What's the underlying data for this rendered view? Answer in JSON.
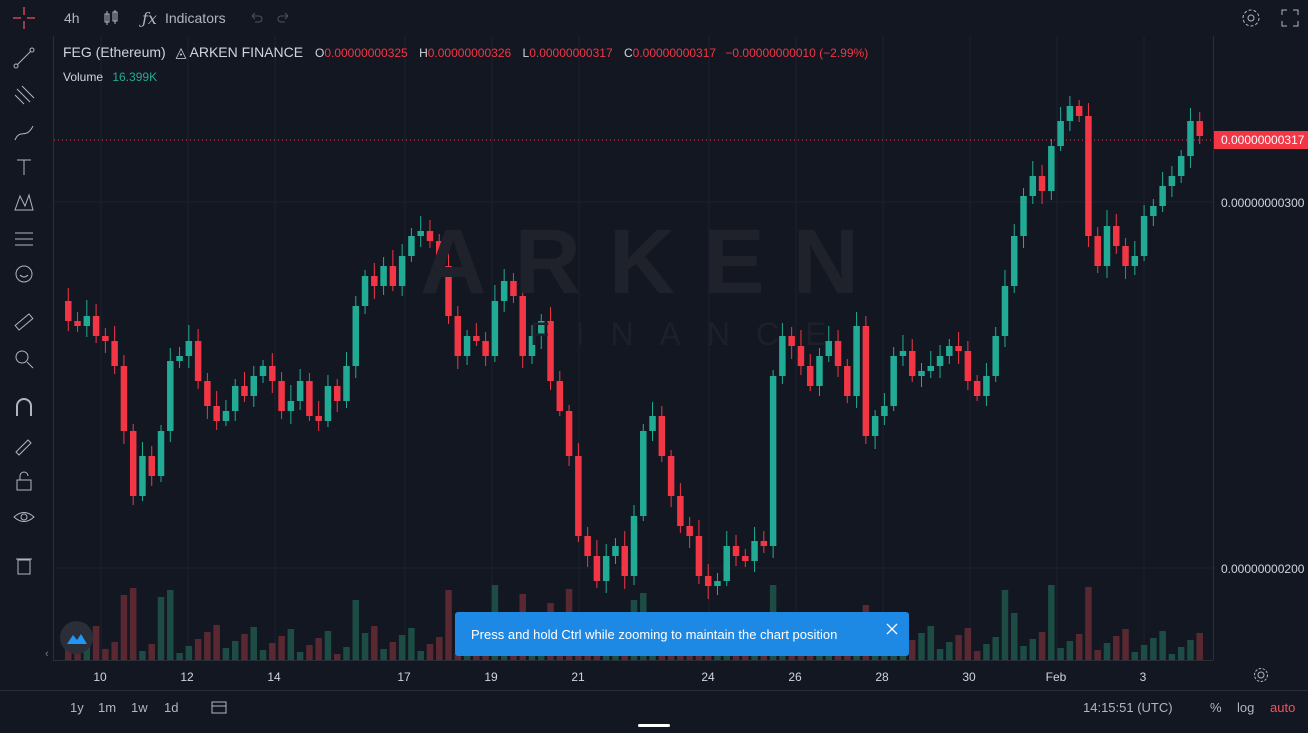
{
  "topbar": {
    "interval": "4h",
    "indicators_label": "Indicators"
  },
  "legend": {
    "symbol": "FEG (Ethereum)",
    "exchange": "ARKEN FINANCE",
    "o_label": "O",
    "open": "0.00000000325",
    "h_label": "H",
    "high": "0.00000000326",
    "l_label": "L",
    "low": "0.00000000317",
    "c_label": "C",
    "close": "0.00000000317",
    "change": "−0.00000000010 (−2.99%)",
    "volume_label": "Volume",
    "volume": "16.399K"
  },
  "watermark": {
    "main": "ARKEN",
    "sub": "FINANCE"
  },
  "price_axis": {
    "current": "0.00000000317",
    "labels": [
      "0.00000000300",
      "0.00000000200"
    ]
  },
  "time_axis": {
    "ticks": [
      "10",
      "12",
      "14",
      "17",
      "19",
      "21",
      "24",
      "26",
      "28",
      "30",
      "Feb",
      "3"
    ]
  },
  "toast": {
    "message": "Press and hold Ctrl while zooming to maintain the chart position"
  },
  "bottombar": {
    "ranges": [
      "1y",
      "1m",
      "1w",
      "1d"
    ],
    "clock": "14:15:51 (UTC)",
    "percent": "%",
    "log": "log",
    "auto": "auto"
  },
  "colors": {
    "up": "#22ab94",
    "down": "#f23645",
    "background": "#131722",
    "accent": "#f7525f"
  },
  "chart_data": {
    "type": "candlestick",
    "price_ticks": [
      3e-09,
      2e-09
    ],
    "last_price": 3.17e-09,
    "x_ticks": [
      "10",
      "12",
      "14",
      "17",
      "19",
      "21",
      "24",
      "26",
      "28",
      "30",
      "Feb",
      "3"
    ]
  }
}
